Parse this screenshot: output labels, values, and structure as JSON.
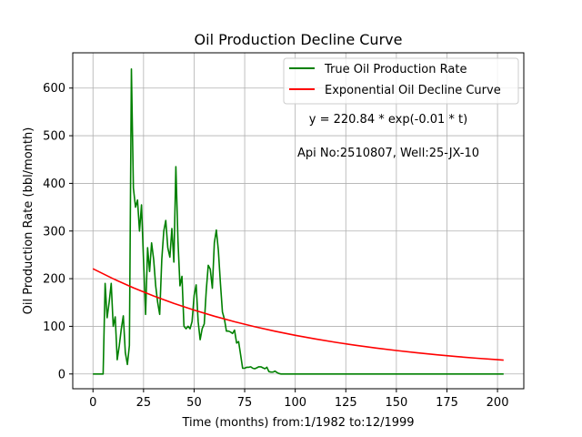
{
  "chart_data": {
    "type": "line",
    "title": "Oil Production Decline Curve",
    "xlabel": "Time (months) from:1/1982 to:12/1999",
    "ylabel": "Oil Production Rate (bbl/month)",
    "xlim": [
      -10,
      213
    ],
    "ylim": [
      -31,
      674
    ],
    "xticks": [
      0,
      25,
      50,
      75,
      100,
      125,
      150,
      175,
      200
    ],
    "yticks": [
      0,
      100,
      200,
      300,
      400,
      500,
      600
    ],
    "grid": true,
    "legend_position": "top-right",
    "annotations": [
      "y = 220.84 * exp(-0.01 * t)",
      "Api No:2510807, Well:25-JX-10"
    ],
    "series": [
      {
        "name": "True Oil Production Rate",
        "color": "#008000",
        "x": [
          0,
          1,
          2,
          3,
          4,
          5,
          6,
          7,
          8,
          9,
          10,
          11,
          12,
          13,
          14,
          15,
          16,
          17,
          18,
          19,
          20,
          21,
          22,
          23,
          24,
          25,
          26,
          27,
          28,
          29,
          30,
          31,
          32,
          33,
          34,
          35,
          36,
          37,
          38,
          39,
          40,
          41,
          42,
          43,
          44,
          45,
          46,
          47,
          48,
          49,
          50,
          51,
          52,
          53,
          54,
          55,
          56,
          57,
          58,
          59,
          60,
          61,
          62,
          63,
          64,
          65,
          66,
          67,
          68,
          69,
          70,
          71,
          72,
          73,
          74,
          75,
          76,
          77,
          78,
          79,
          80,
          81,
          82,
          83,
          84,
          85,
          86,
          87,
          88,
          89,
          90,
          91,
          92,
          93,
          94,
          95,
          96,
          97,
          98,
          99,
          100,
          110,
          120,
          130,
          140,
          150,
          160,
          170,
          180,
          190,
          200,
          203
        ],
        "y": [
          0,
          0,
          0,
          0,
          0,
          0,
          190,
          118,
          150,
          190,
          100,
          120,
          30,
          60,
          95,
          122,
          45,
          20,
          60,
          640,
          390,
          350,
          365,
          300,
          355,
          240,
          125,
          265,
          215,
          275,
          240,
          185,
          150,
          125,
          240,
          300,
          322,
          265,
          245,
          305,
          235,
          435,
          280,
          185,
          205,
          100,
          95,
          100,
          95,
          110,
          165,
          187,
          110,
          72,
          95,
          105,
          175,
          228,
          220,
          180,
          275,
          302,
          260,
          190,
          130,
          115,
          90,
          90,
          88,
          85,
          92,
          65,
          68,
          40,
          12,
          12,
          14,
          14,
          15,
          12,
          11,
          13,
          15,
          15,
          13,
          11,
          14,
          5,
          4,
          4,
          6,
          3,
          1,
          0,
          0,
          0,
          0,
          0,
          0,
          0,
          0,
          0,
          0,
          0,
          0,
          0,
          0,
          0,
          0,
          0,
          0,
          0
        ]
      },
      {
        "name": "Exponential Oil Decline Curve",
        "color": "#ff0000",
        "x": [
          0,
          10,
          20,
          30,
          40,
          50,
          60,
          70,
          80,
          90,
          100,
          110,
          120,
          130,
          140,
          150,
          160,
          170,
          180,
          190,
          200,
          203
        ],
        "y": [
          220.84,
          199.8,
          180.8,
          163.6,
          148.0,
          134.0,
          121.2,
          109.7,
          99.2,
          89.8,
          81.2,
          73.5,
          66.5,
          60.2,
          54.4,
          49.3,
          44.6,
          40.3,
          36.5,
          33.0,
          29.9,
          29.0
        ]
      }
    ]
  }
}
